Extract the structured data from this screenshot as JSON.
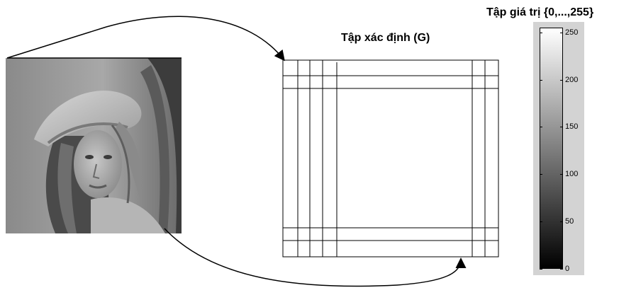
{
  "domain_title": "Tập xác định (G)",
  "range_title": "Tập giá trị {0,...,255}",
  "image": {
    "subject": "grayscale portrait photo (woman wearing a feathered hat)"
  },
  "colorbar": {
    "min": 0,
    "max": 255,
    "ticks": [
      0,
      50,
      100,
      150,
      200,
      250
    ],
    "colormap": "gray",
    "panel_color": "#d3d3d3"
  },
  "grid": {
    "color": "#000000"
  }
}
